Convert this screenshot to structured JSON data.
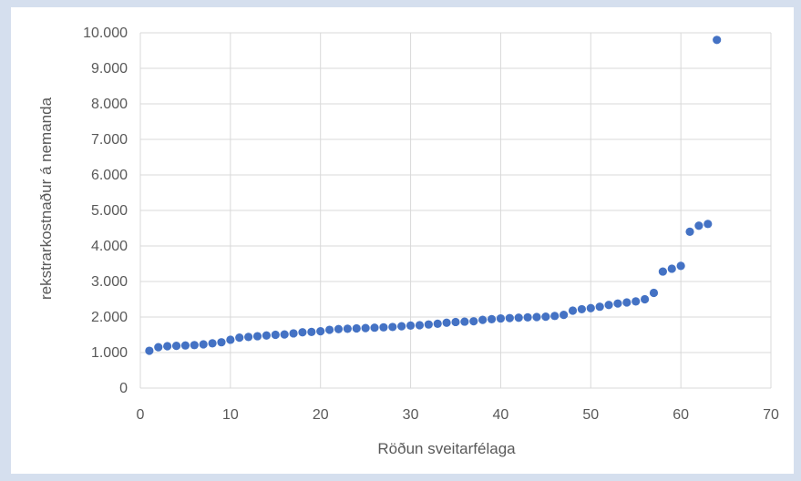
{
  "chart_data": {
    "type": "scatter",
    "title": "",
    "xlabel": "Röðun sveitarfélaga",
    "ylabel": "rekstrarkostnaður  á nemanda",
    "xlim": [
      0,
      70
    ],
    "ylim": [
      0,
      10000
    ],
    "x_ticks": [
      "0",
      "10",
      "20",
      "30",
      "40",
      "50",
      "60",
      "70"
    ],
    "y_ticks": [
      "0",
      "1.000",
      "2.000",
      "3.000",
      "4.000",
      "5.000",
      "6.000",
      "7.000",
      "8.000",
      "9.000",
      "10.000"
    ],
    "grid": true,
    "legend": "none",
    "marker_color": "#4472c4",
    "series": [
      {
        "x": [
          1,
          2,
          3,
          4,
          5,
          6,
          7,
          8,
          9,
          10,
          11,
          12,
          13,
          14,
          15,
          16,
          17,
          18,
          19,
          20,
          21,
          22,
          23,
          24,
          25,
          26,
          27,
          28,
          29,
          30,
          31,
          32,
          33,
          34,
          35,
          36,
          37,
          38,
          39,
          40,
          41,
          42,
          43,
          44,
          45,
          46,
          47,
          48,
          49,
          50,
          51,
          52,
          53,
          54,
          55,
          56,
          57,
          58,
          59,
          60,
          61,
          62,
          63,
          64
        ],
        "y": [
          1050,
          1150,
          1180,
          1190,
          1200,
          1210,
          1230,
          1260,
          1290,
          1360,
          1420,
          1440,
          1460,
          1480,
          1500,
          1510,
          1540,
          1570,
          1580,
          1600,
          1640,
          1660,
          1670,
          1680,
          1690,
          1700,
          1710,
          1720,
          1740,
          1760,
          1770,
          1790,
          1810,
          1840,
          1860,
          1870,
          1880,
          1920,
          1940,
          1960,
          1970,
          1980,
          1990,
          2000,
          2010,
          2030,
          2060,
          2180,
          2220,
          2250,
          2290,
          2340,
          2380,
          2410,
          2440,
          2500,
          2680,
          3280,
          3360,
          3440,
          4400,
          4570,
          4620,
          9800
        ]
      }
    ]
  }
}
